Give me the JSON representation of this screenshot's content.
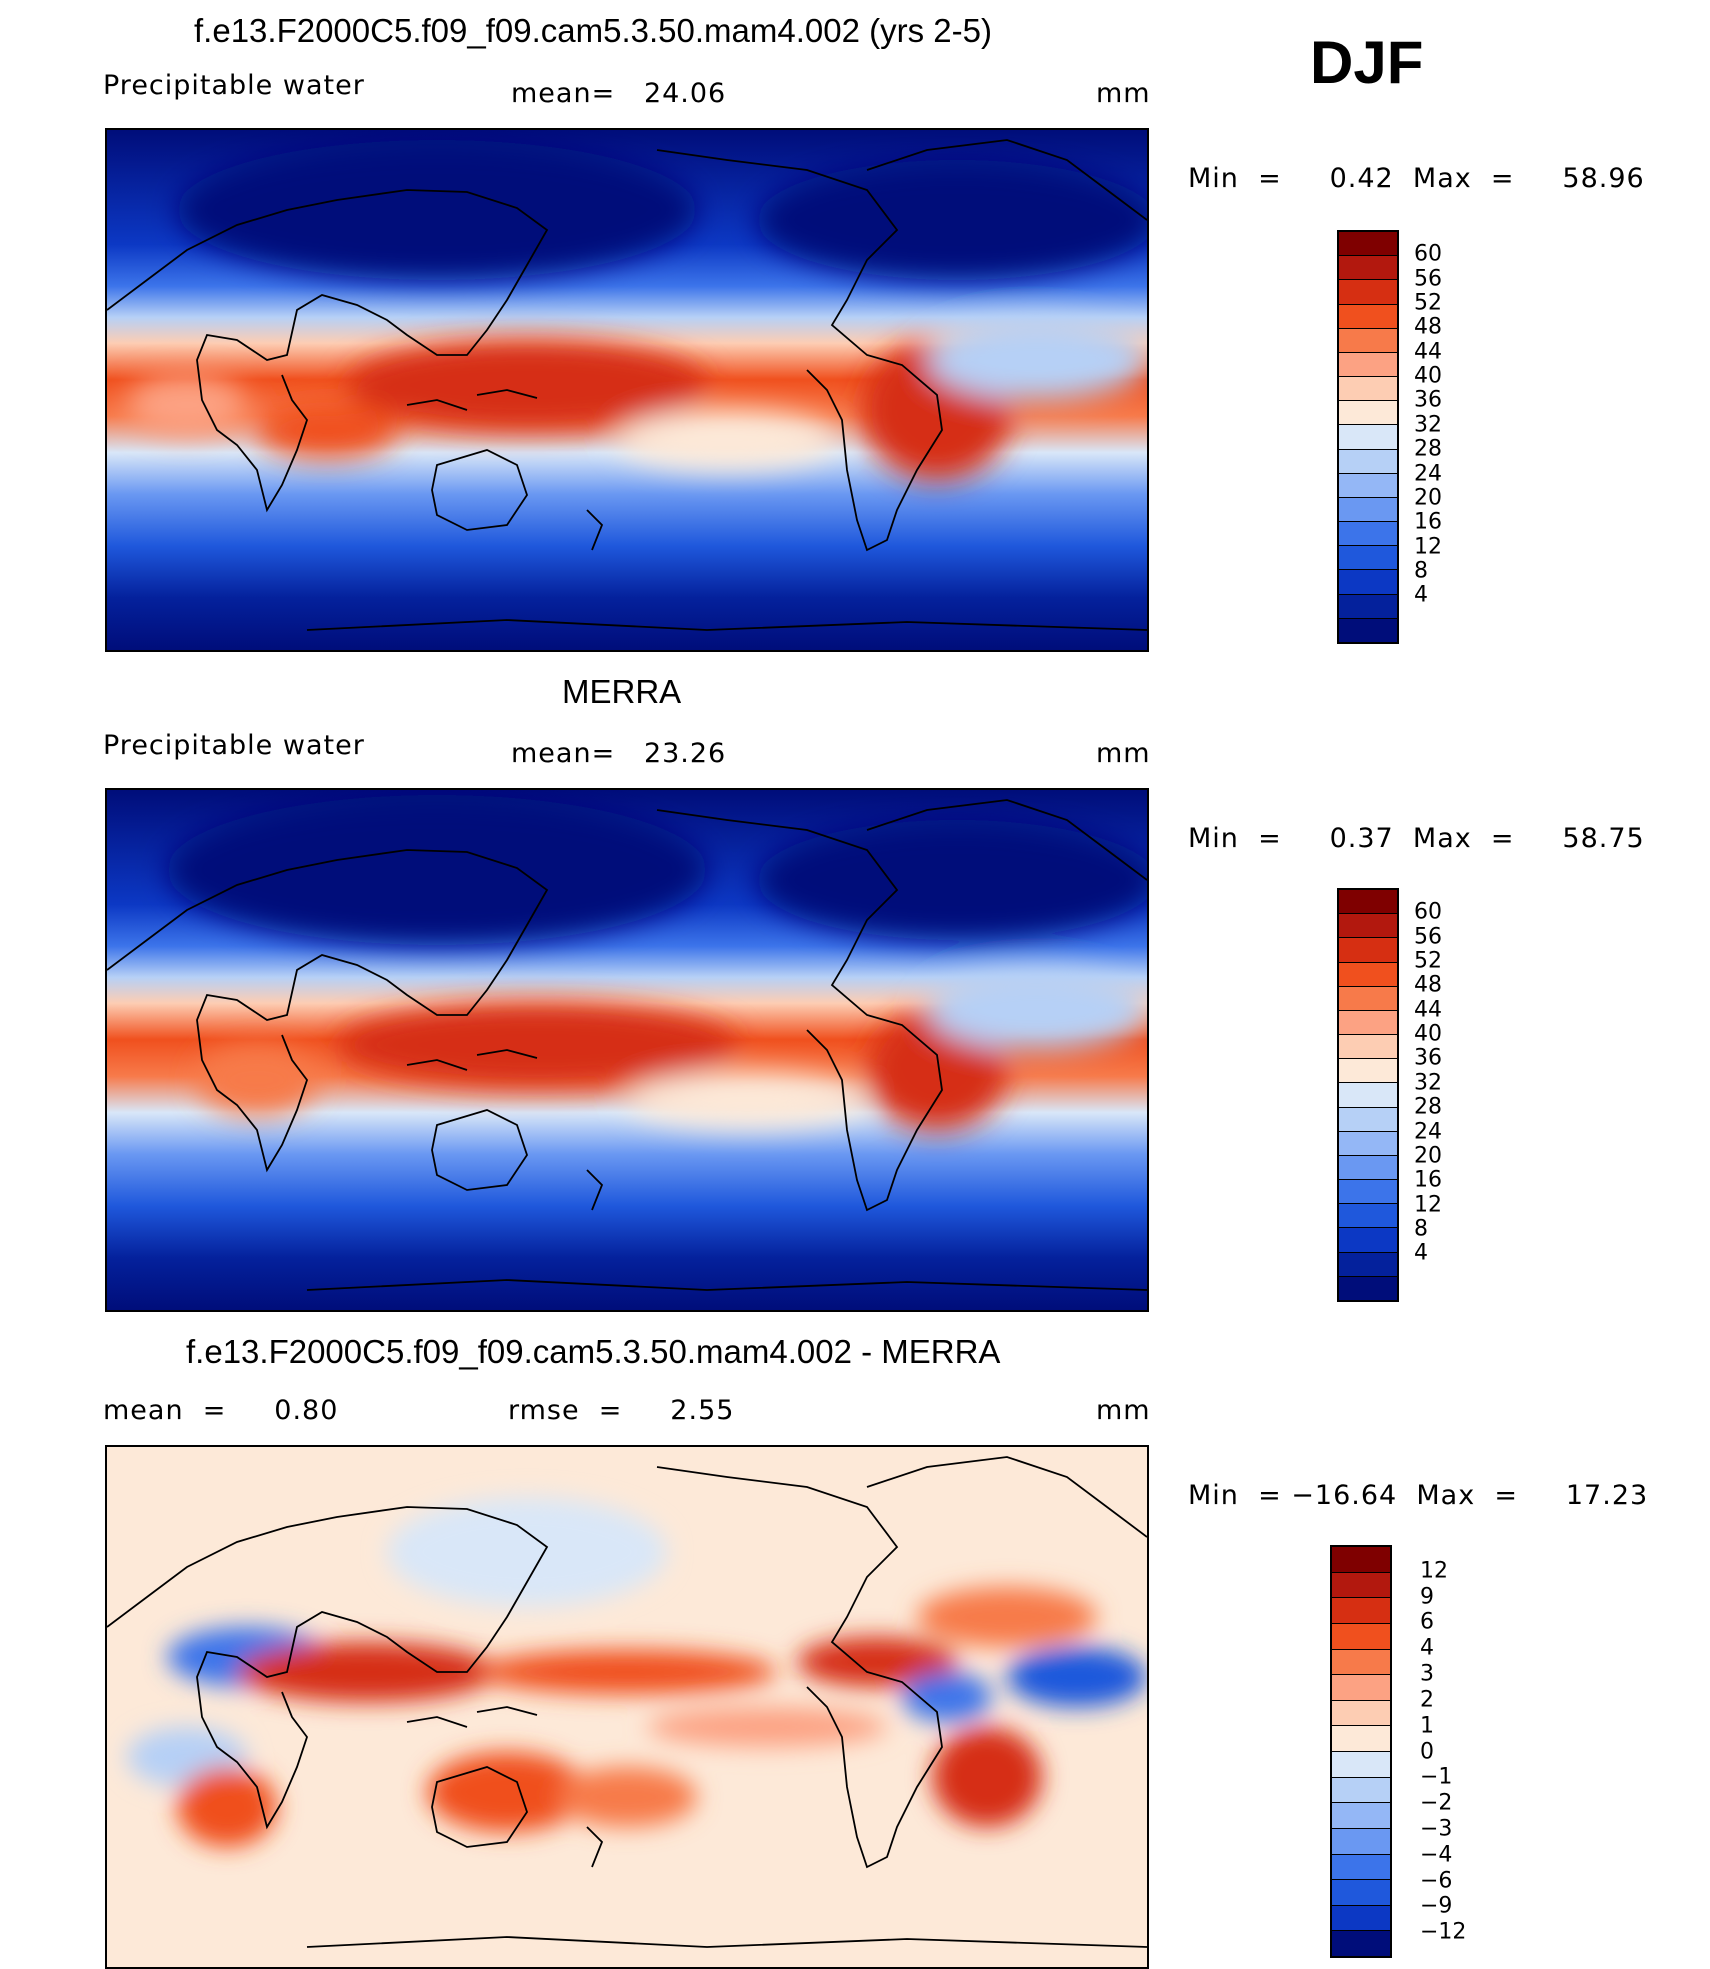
{
  "season": "DJF",
  "panels": [
    {
      "title": "f.e13.F2000C5.f09_f09.cam5.3.50.mam4.002 (yrs 2-5)",
      "left_label": "Precipitable water",
      "center_label": "mean=   24.06",
      "right_label": "mm",
      "minmax": "Min  =     0.42  Max  =     58.96"
    },
    {
      "title": "MERRA",
      "left_label": "Precipitable water",
      "center_label": "mean=   23.26",
      "right_label": "mm",
      "minmax": "Min  =     0.37  Max  =     58.75"
    },
    {
      "title": "f.e13.F2000C5.f09_f09.cam5.3.50.mam4.002 - MERRA",
      "left_label": "mean  =     0.80",
      "center_label": "rmse  =     2.55",
      "right_label": "mm",
      "minmax": "Min  = −16.64  Max  =     17.23"
    }
  ],
  "colorbars": {
    "field": {
      "colors": [
        "#7f0000",
        "#b2180e",
        "#d62f12",
        "#f0501e",
        "#f77a4a",
        "#fca283",
        "#fdcdb3",
        "#fde9d8",
        "#d9e7f8",
        "#b6d0f6",
        "#94b7f6",
        "#6a98f2",
        "#3c74ea",
        "#1f58dc",
        "#0c38c4",
        "#04219c",
        "#000d7a"
      ],
      "labels": [
        "60",
        "56",
        "52",
        "48",
        "44",
        "40",
        "36",
        "32",
        "28",
        "24",
        "20",
        "16",
        "12",
        "8",
        "4"
      ]
    },
    "diff": {
      "colors": [
        "#7f0000",
        "#b2180e",
        "#d62f12",
        "#f0501e",
        "#f77a4a",
        "#fca283",
        "#fdcdb3",
        "#fde9d8",
        "#d9e7f8",
        "#b6d0f6",
        "#94b7f6",
        "#6a98f2",
        "#3c74ea",
        "#1f58dc",
        "#0c38c4",
        "#000d7a"
      ],
      "labels": [
        "12",
        "9",
        "6",
        "4",
        "3",
        "2",
        "1",
        "0",
        "−1",
        "−2",
        "−3",
        "−4",
        "−6",
        "−9",
        "−12"
      ]
    }
  }
}
